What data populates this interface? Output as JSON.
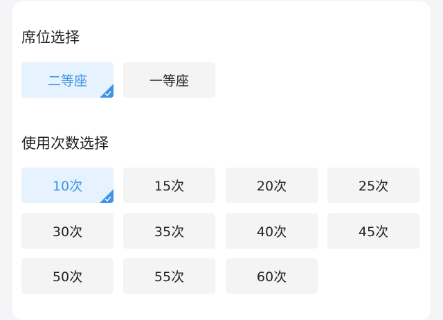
{
  "seat": {
    "title": "席位选择",
    "options": [
      {
        "label": "二等座",
        "selected": true
      },
      {
        "label": "一等座",
        "selected": false
      }
    ]
  },
  "count": {
    "title": "使用次数选择",
    "options": [
      {
        "label": "10次",
        "selected": true
      },
      {
        "label": "15次",
        "selected": false
      },
      {
        "label": "20次",
        "selected": false
      },
      {
        "label": "25次",
        "selected": false
      },
      {
        "label": "30次",
        "selected": false
      },
      {
        "label": "35次",
        "selected": false
      },
      {
        "label": "40次",
        "selected": false
      },
      {
        "label": "45次",
        "selected": false
      },
      {
        "label": "50次",
        "selected": false
      },
      {
        "label": "55次",
        "selected": false
      },
      {
        "label": "60次",
        "selected": false
      }
    ]
  },
  "colors": {
    "accent": "#3d94e8",
    "selected_bg": "#e6f2fe",
    "option_bg": "#f4f4f4"
  }
}
